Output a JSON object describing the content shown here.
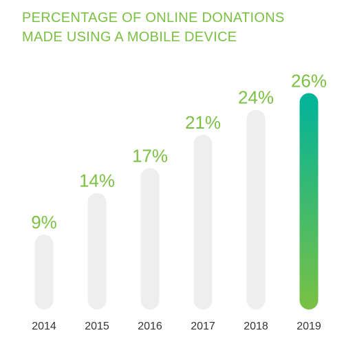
{
  "title_lines": [
    "PERCENTAGE OF ONLINE DONATIONS",
    "MADE USING A MOBILE DEVICE"
  ],
  "colors": {
    "accent": "#7ac143",
    "bar_track": "#eeeeef",
    "highlight_top": "#00b39a",
    "highlight_bottom": "#7ac143",
    "tick_text": "#333333"
  },
  "chart_data": {
    "type": "bar",
    "title": "PERCENTAGE OF ONLINE DONATIONS MADE USING A MOBILE DEVICE",
    "categories": [
      "2014",
      "2015",
      "2016",
      "2017",
      "2018",
      "2019"
    ],
    "values": [
      9,
      14,
      17,
      21,
      24,
      26
    ],
    "value_labels": [
      "9%",
      "14%",
      "17%",
      "21%",
      "24%",
      "26%"
    ],
    "highlight_index": 5,
    "xlabel": "",
    "ylabel": "",
    "ylim": [
      0,
      28
    ],
    "grid": false,
    "legend": "none"
  }
}
